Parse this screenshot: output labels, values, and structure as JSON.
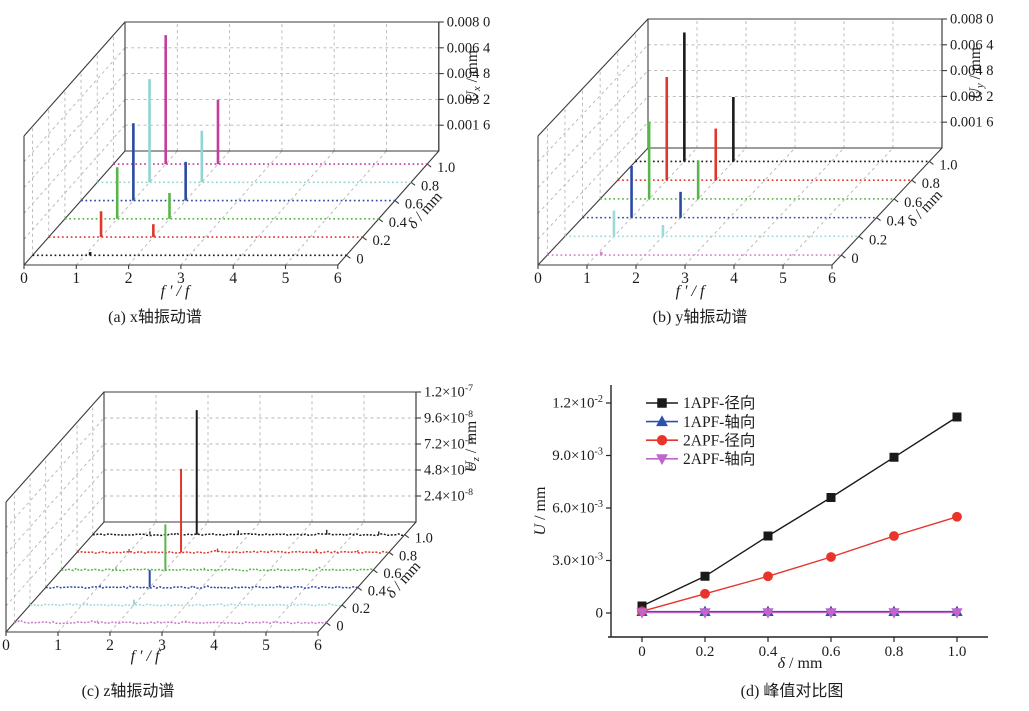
{
  "figure": {
    "background": "#ffffff",
    "grid_color": "#b5b5b5",
    "frame_color": "#3b3b3b",
    "text_color": "#1c1c1c"
  },
  "chart_data": [
    {
      "id": "a",
      "type": "waterfall3d",
      "caption": "(a) x轴振动谱",
      "xlabel": "f ′ / f",
      "xticks": [
        "0",
        "1",
        "2",
        "3",
        "4",
        "5",
        "6"
      ],
      "depth_label": "δ / mm",
      "depth_ticks": [
        "0",
        "0.2",
        "0.4",
        "0.6",
        "0.8",
        "1.0"
      ],
      "zlabel": {
        "pre": "U",
        "sub": "x",
        "post": " / mm"
      },
      "ztick_labels": [
        "0.001 6",
        "0.003 2",
        "0.004 8",
        "0.006 4",
        "0.008 0"
      ],
      "zmax": 0.008,
      "series": [
        {
          "delta": 0,
          "color": "#1a1a1a",
          "peaks": [
            {
              "f": 1.1,
              "u": 0.0002
            }
          ]
        },
        {
          "delta": 0.2,
          "color": "#e0362b",
          "peaks": [
            {
              "f": 1,
              "u": 0.0016
            },
            {
              "f": 2,
              "u": 0.0008
            }
          ]
        },
        {
          "delta": 0.4,
          "color": "#59b54a",
          "peaks": [
            {
              "f": 1,
              "u": 0.0032
            },
            {
              "f": 2,
              "u": 0.0016
            }
          ]
        },
        {
          "delta": 0.6,
          "color": "#2b4aa2",
          "peaks": [
            {
              "f": 1,
              "u": 0.0048
            },
            {
              "f": 2,
              "u": 0.0024
            }
          ]
        },
        {
          "delta": 0.8,
          "color": "#8fd5d2",
          "peaks": [
            {
              "f": 1,
              "u": 0.0064
            },
            {
              "f": 2,
              "u": 0.0032
            }
          ]
        },
        {
          "delta": 1.0,
          "color": "#c13e9a",
          "peaks": [
            {
              "f": 1,
              "u": 0.008
            },
            {
              "f": 2,
              "u": 0.004
            }
          ]
        }
      ]
    },
    {
      "id": "b",
      "type": "waterfall3d",
      "caption": "(b) y轴振动谱",
      "xlabel": "f ′ / f",
      "xticks": [
        "0",
        "1",
        "2",
        "3",
        "4",
        "5",
        "6"
      ],
      "depth_label": "δ / mm",
      "depth_ticks": [
        "0",
        "0.2",
        "0.4",
        "0.6",
        "0.8",
        "1.0"
      ],
      "zlabel": {
        "pre": "U",
        "sub": "y",
        "post": " / mm"
      },
      "ztick_labels": [
        "0.001 6",
        "0.003 2",
        "0.004 8",
        "0.006 4",
        "0.008 0"
      ],
      "zmax": 0.008,
      "series": [
        {
          "delta": 0,
          "color": "#d285c6",
          "peaks": [
            {
              "f": 1.1,
              "u": 0.0002
            }
          ]
        },
        {
          "delta": 0.2,
          "color": "#9adbd9",
          "peaks": [
            {
              "f": 1,
              "u": 0.0016
            },
            {
              "f": 2,
              "u": 0.0007
            }
          ]
        },
        {
          "delta": 0.4,
          "color": "#2b4aa2",
          "peaks": [
            {
              "f": 1,
              "u": 0.0032
            },
            {
              "f": 2,
              "u": 0.0016
            }
          ]
        },
        {
          "delta": 0.6,
          "color": "#59b54a",
          "peaks": [
            {
              "f": 1,
              "u": 0.0048
            },
            {
              "f": 2,
              "u": 0.0024
            }
          ]
        },
        {
          "delta": 0.8,
          "color": "#e0362b",
          "peaks": [
            {
              "f": 1,
              "u": 0.0064
            },
            {
              "f": 2,
              "u": 0.0032
            }
          ]
        },
        {
          "delta": 1.0,
          "color": "#1a1a1a",
          "peaks": [
            {
              "f": 1,
              "u": 0.008
            },
            {
              "f": 2,
              "u": 0.004
            }
          ]
        }
      ]
    },
    {
      "id": "c",
      "type": "waterfall3d",
      "caption": "(c) z轴振动谱",
      "xlabel": "f ′ / f",
      "xticks": [
        "0",
        "1",
        "2",
        "3",
        "4",
        "5",
        "6"
      ],
      "depth_label": "δ / mm",
      "depth_ticks": [
        "0",
        "0.2",
        "0.4",
        "0.6",
        "0.8",
        "1.0"
      ],
      "zlabel": {
        "pre": "U",
        "sub": "z",
        "post": " / mm"
      },
      "ztick_labels": [
        "2.4×10^-8",
        "4.8×10^-8",
        "7.2×10^-8",
        "9.6×10^-8",
        "1.2×10^-7"
      ],
      "zmax": 1.2e-07,
      "noise": true,
      "series": [
        {
          "delta": 0,
          "color": "#c77ac9",
          "peaks": [],
          "minor": [
            {
              "f": 1.6,
              "u": 2e-09
            },
            {
              "f": 3.3,
              "u": 2e-09
            }
          ]
        },
        {
          "delta": 0.2,
          "color": "#9adbd9",
          "peaks": [
            {
              "f": 2,
              "u": 5e-09
            }
          ],
          "minor": [
            {
              "f": 1.1,
              "u": 2e-09
            }
          ]
        },
        {
          "delta": 0.4,
          "color": "#2b4aa2",
          "peaks": [
            {
              "f": 2,
              "u": 1.6e-08
            }
          ],
          "minor": [
            {
              "f": 1.05,
              "u": 2e-09
            },
            {
              "f": 4.5,
              "u": 2e-09
            }
          ]
        },
        {
          "delta": 0.6,
          "color": "#59b54a",
          "peaks": [
            {
              "f": 2,
              "u": 4.2e-08
            }
          ],
          "minor": [
            {
              "f": 1.05,
              "u": 2.5e-09
            },
            {
              "f": 2.75,
              "u": 2e-09
            }
          ]
        },
        {
          "delta": 0.8,
          "color": "#e0362b",
          "peaks": [
            {
              "f": 2,
              "u": 7.7e-08
            }
          ],
          "minor": [
            {
              "f": 1.0,
              "u": 3e-09
            },
            {
              "f": 2.7,
              "u": 3.5e-09
            },
            {
              "f": 4.6,
              "u": 3e-09
            },
            {
              "f": 5.4,
              "u": 2e-09
            }
          ]
        },
        {
          "delta": 1.0,
          "color": "#1a1a1a",
          "peaks": [
            {
              "f": 2,
              "u": 1.15e-07
            }
          ],
          "minor": [
            {
              "f": 1.1,
              "u": 3e-09
            },
            {
              "f": 2.8,
              "u": 4e-09
            },
            {
              "f": 4.5,
              "u": 4.5e-09
            },
            {
              "f": 5.5,
              "u": 3e-09
            }
          ]
        }
      ]
    },
    {
      "id": "d",
      "type": "line",
      "caption": "(d) 峰值对比图",
      "xlabel": {
        "pre": "δ",
        "sub": "",
        "post": " / mm"
      },
      "ylabel": {
        "pre": "U",
        "sub": "",
        "post": " / mm"
      },
      "xticks": [
        "0",
        "0.2",
        "0.4",
        "0.6",
        "0.8",
        "1.0"
      ],
      "ytick_labels": [
        "0",
        "3.0×10^-3",
        "6.0×10^-3",
        "9.0×10^-3",
        "1.2×10^-2"
      ],
      "yticks": [
        0,
        0.003,
        0.006,
        0.009,
        0.012
      ],
      "x": [
        0,
        0.2,
        0.4,
        0.6,
        0.8,
        1.0
      ],
      "legend_position": "top-left",
      "series": [
        {
          "name": "1APF-径向",
          "color": "#1a1a1a",
          "marker": "square",
          "values": [
            0.0004,
            0.0021,
            0.0044,
            0.0066,
            0.0089,
            0.0112
          ]
        },
        {
          "name": "1APF-轴向",
          "color": "#2b51ae",
          "marker": "triangle-up",
          "values": [
            8e-05,
            8e-05,
            8e-05,
            8e-05,
            8e-05,
            8e-05
          ]
        },
        {
          "name": "2APF-径向",
          "color": "#e8342b",
          "marker": "circle",
          "values": [
            0.0001,
            0.0011,
            0.0021,
            0.0032,
            0.0044,
            0.0055
          ]
        },
        {
          "name": "2APF-轴向",
          "color": "#bf66cc",
          "marker": "triangle-down",
          "values": [
            2e-05,
            2e-05,
            2e-05,
            2e-05,
            2e-05,
            2e-05
          ]
        }
      ]
    }
  ]
}
